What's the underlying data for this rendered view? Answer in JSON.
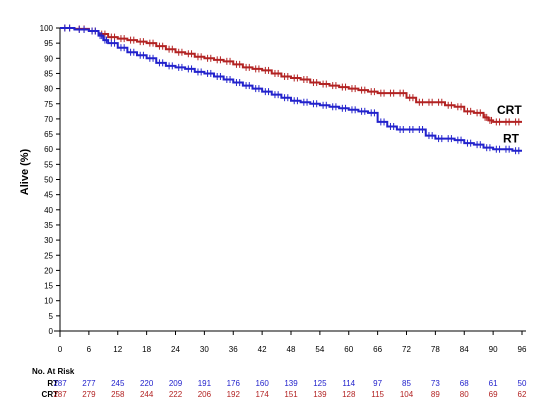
{
  "chart_data": {
    "type": "line",
    "title": "",
    "xlabel": "",
    "ylabel": "Alive (%)",
    "xlim": [
      0,
      96
    ],
    "ylim": [
      0,
      100
    ],
    "xticks": [
      0,
      6,
      12,
      18,
      24,
      30,
      36,
      42,
      48,
      54,
      60,
      66,
      72,
      78,
      84,
      90,
      96
    ],
    "yticks": [
      0,
      5,
      10,
      15,
      20,
      25,
      30,
      35,
      40,
      45,
      50,
      55,
      60,
      65,
      70,
      75,
      80,
      85,
      90,
      95,
      100
    ],
    "grid": false,
    "series": [
      {
        "name": "CRT",
        "color": "#b22222",
        "x": [
          0,
          3,
          6,
          8,
          10,
          12,
          14,
          16,
          18,
          20,
          22,
          24,
          26,
          28,
          30,
          32,
          34,
          36,
          38,
          40,
          42,
          44,
          46,
          48,
          50,
          52,
          54,
          56,
          58,
          60,
          62,
          64,
          66,
          68,
          70,
          72,
          74,
          76,
          78,
          80,
          82,
          84,
          86,
          88,
          89,
          90,
          92,
          94,
          96
        ],
        "y": [
          100,
          99.7,
          99,
          98,
          97,
          96.5,
          96,
          95.5,
          95,
          94,
          93,
          92,
          91.5,
          90.5,
          90,
          89.5,
          89,
          88,
          87,
          86.5,
          86,
          85,
          84,
          83.5,
          83,
          82,
          81.5,
          81,
          80.5,
          80,
          79.5,
          79,
          78.5,
          78.5,
          78.5,
          77,
          75.5,
          75.5,
          75.5,
          74.5,
          74,
          72.5,
          72,
          70.5,
          69.5,
          69,
          69,
          69,
          69
        ]
      },
      {
        "name": "RT",
        "color": "#2222cc",
        "x": [
          0,
          3,
          6,
          8,
          9,
          10,
          12,
          14,
          16,
          18,
          20,
          22,
          24,
          26,
          28,
          30,
          32,
          34,
          36,
          38,
          40,
          42,
          44,
          46,
          48,
          50,
          52,
          54,
          56,
          58,
          60,
          62,
          64,
          66,
          68,
          70,
          72,
          74,
          76,
          78,
          80,
          82,
          84,
          86,
          88,
          90,
          92,
          94,
          96
        ],
        "y": [
          100,
          99.5,
          99,
          97.5,
          96,
          95,
          93.5,
          92,
          91,
          90,
          88.5,
          87.5,
          87,
          86.5,
          85.5,
          85,
          84,
          83,
          82,
          81,
          80,
          79,
          78,
          77,
          76,
          75.5,
          75,
          74.5,
          74,
          73.5,
          73,
          72.5,
          72,
          69,
          67.5,
          66.5,
          66.5,
          66.5,
          64.5,
          63.5,
          63.5,
          63,
          62,
          61.5,
          60.5,
          60,
          60,
          59.5,
          59.5
        ]
      }
    ],
    "risk_table": {
      "title": "No. At Risk",
      "times": [
        0,
        6,
        12,
        18,
        24,
        30,
        36,
        42,
        48,
        54,
        60,
        66,
        72,
        78,
        84,
        90,
        96
      ],
      "rows": [
        {
          "label": "RT",
          "color": "#2222cc",
          "values": [
            287,
            277,
            245,
            220,
            209,
            191,
            176,
            160,
            139,
            125,
            114,
            97,
            85,
            73,
            68,
            61,
            50
          ]
        },
        {
          "label": "CRT",
          "color": "#b22222",
          "values": [
            287,
            279,
            258,
            244,
            222,
            206,
            192,
            174,
            151,
            139,
            128,
            115,
            104,
            89,
            80,
            69,
            62
          ]
        }
      ]
    }
  }
}
